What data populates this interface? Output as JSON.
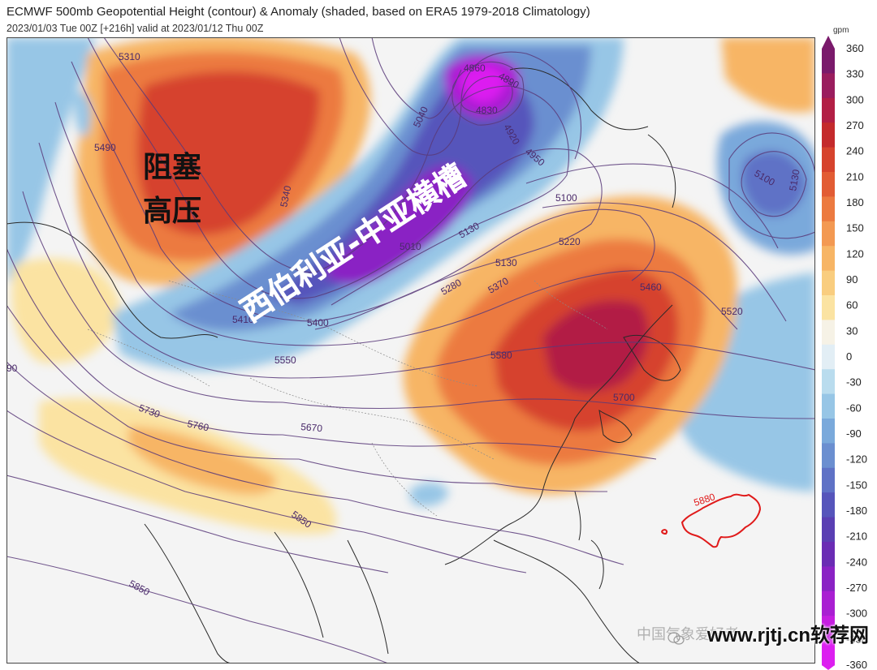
{
  "header": {
    "title": "ECMWF 500mb Geopotential Height (contour) & Anomaly (shaded, based on ERA5 1979-2018 Climatology)",
    "subtitle": "2023/01/03 Tue 00Z [+216h] valid at 2023/01/12 Thu 00Z"
  },
  "colorbar": {
    "unit": "gpm",
    "labels": [
      "360",
      "330",
      "300",
      "270",
      "240",
      "210",
      "180",
      "150",
      "120",
      "90",
      "60",
      "30",
      "0",
      "-30",
      "-60",
      "-90",
      "-120",
      "-150",
      "-180",
      "-210",
      "-240",
      "-270",
      "-300",
      "-330",
      "-360"
    ],
    "colors": [
      "#7a1a6b",
      "#9a1d5e",
      "#b21f45",
      "#c42a2c",
      "#d6432d",
      "#e25c34",
      "#ec7a40",
      "#f39952",
      "#f7b565",
      "#f9cd7f",
      "#fbe3a2",
      "#f6f2e6",
      "#e2eef5",
      "#b9dcee",
      "#97c6e6",
      "#7aa9db",
      "#6b8fd0",
      "#5f72c6",
      "#5655bb",
      "#5a3fb3",
      "#6a2cb4",
      "#8a22c4",
      "#a91fd2",
      "#c51ee0",
      "#dc1ff0"
    ]
  },
  "annotations": {
    "blocking": "阻塞\n高压",
    "trough": "西伯利亚-中亚横槽"
  },
  "contour_labels": [
    "5310",
    "5490",
    "5340",
    "5040",
    "4860",
    "4890",
    "4830",
    "4920",
    "4950",
    "5100",
    "5130",
    "5010",
    "5130",
    "5220",
    "5280",
    "5370",
    "5460",
    "5520",
    "5410",
    "5400",
    "5550",
    "5580",
    "5700",
    "5730",
    "5760",
    "5670",
    "5850",
    "5880",
    "5850",
    "5100",
    "5130",
    "90"
  ],
  "watermark": "www.rjtj.cn软荐网",
  "watermark_faint": "中国气象爱好者"
}
